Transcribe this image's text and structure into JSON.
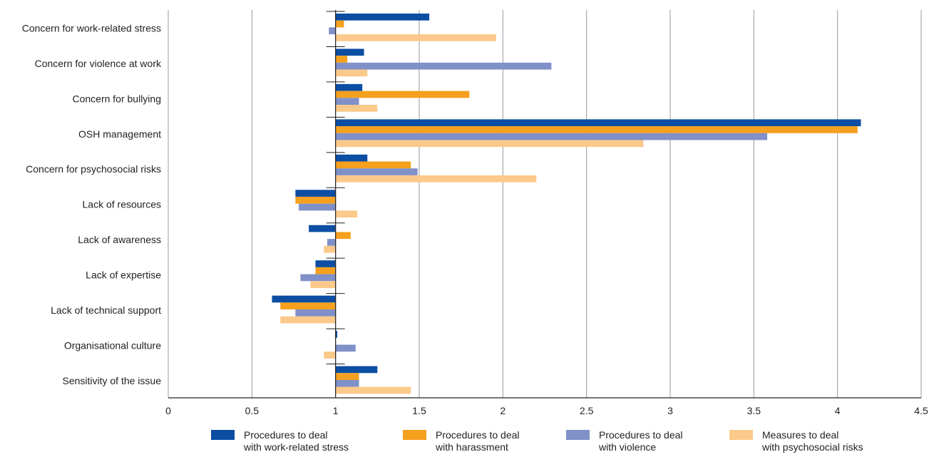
{
  "chart_data": {
    "type": "bar",
    "orientation": "horizontal",
    "baseline": 1,
    "xlim": [
      0,
      4.5
    ],
    "x_ticks": [
      "0",
      "0.5",
      "1",
      "1.5",
      "2",
      "2.5",
      "3",
      "3.5",
      "4",
      "4.5"
    ],
    "x_tick_values": [
      0,
      0.5,
      1,
      1.5,
      2,
      2.5,
      3,
      3.5,
      4,
      4.5
    ],
    "grid": "vertical",
    "legend_position": "bottom",
    "categories": [
      "Concern for work-related stress",
      "Concern for violence at work",
      "Concern for bullying",
      "OSH management",
      "Concern for psychosocial risks",
      "Lack of resources",
      "Lack of awareness",
      "Lack of expertise",
      "Lack of technical support",
      "Organisational culture",
      "Sensitivity of the issue"
    ],
    "series": [
      {
        "name": "Procedures to deal with work-related stress",
        "legend_lines": [
          "Procedures to deal",
          "with work-related stress"
        ],
        "color": "#0b4ea2",
        "values": [
          1.56,
          1.17,
          1.16,
          4.14,
          1.19,
          0.76,
          0.84,
          0.88,
          0.62,
          1.01,
          1.25
        ]
      },
      {
        "name": "Procedures to deal with harassment",
        "legend_lines": [
          "Procedures to deal",
          "with harassment"
        ],
        "color": "#f5a01e",
        "values": [
          1.05,
          1.07,
          1.8,
          4.12,
          1.45,
          0.76,
          1.09,
          0.88,
          0.67,
          1.0,
          1.14
        ]
      },
      {
        "name": "Procedures to deal with violence",
        "legend_lines": [
          "Procedures to deal",
          "with violence"
        ],
        "color": "#8090c8",
        "values": [
          0.96,
          2.29,
          1.14,
          3.58,
          1.49,
          0.78,
          0.95,
          0.79,
          0.76,
          1.12,
          1.14
        ]
      },
      {
        "name": "Measures to deal with psychosocial risks",
        "legend_lines": [
          "Measures to deal",
          "with psychosocial risks"
        ],
        "color": "#fbc98a",
        "values": [
          1.96,
          1.19,
          1.25,
          2.84,
          2.2,
          1.13,
          0.93,
          0.85,
          0.67,
          0.93,
          1.45
        ]
      }
    ]
  }
}
